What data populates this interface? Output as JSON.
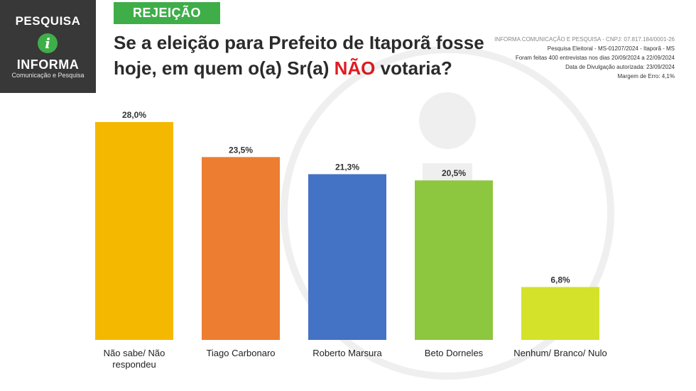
{
  "logo": {
    "top": "PESQUISA",
    "icon": "i",
    "name": "INFORMA",
    "sub": "Comunicação e Pesquisa"
  },
  "tag": "REJEIÇÃO",
  "question": {
    "part1": "Se a eleição para Prefeito de Itaporã fosse",
    "part2": "hoje, em quem o(a) Sr(a) ",
    "emph": "NÃO",
    "part3": " votaria?"
  },
  "meta": [
    "INFORMA COMUNICAÇÃO E PESQUISA - CNPJ: 07.817.184/0001-26",
    "Pesquisa Eleitoral - MS-01207/2024 - Itaporã - MS",
    "Foram feitas 400 entrevistas nos dias 20/09/2024 a 22/09/2024",
    "Data de Divulgação autorizada: 23/09/2024",
    "Margem de Erro: 4,1%"
  ],
  "colors": {
    "bars": [
      "#f5b800",
      "#ed7d31",
      "#4472c4",
      "#8dc63f",
      "#d4e22a"
    ],
    "brand_green": "#3fae49",
    "emphasis_red": "#e01b22"
  },
  "chart_data": {
    "type": "bar",
    "categories": [
      "Não sabe/ Não respondeu",
      "Tiago Carbonaro",
      "Roberto Marsura",
      "Beto Dorneles",
      "Nenhum/ Branco/ Nulo"
    ],
    "values": [
      28.0,
      23.5,
      21.3,
      20.5,
      6.8
    ],
    "value_labels": [
      "28,0%",
      "23,5%",
      "21,3%",
      "20,5%",
      "6,8%"
    ],
    "ylim": [
      0,
      30
    ],
    "grid": false,
    "legend": "none"
  }
}
